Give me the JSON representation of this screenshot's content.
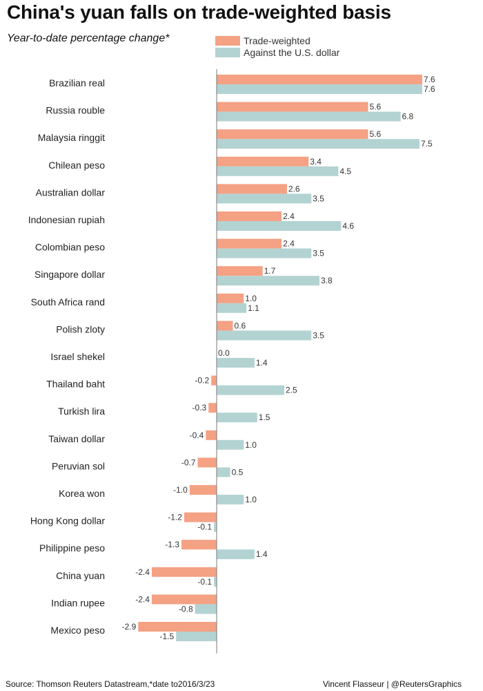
{
  "title": "China's yuan falls on trade-weighted basis",
  "subtitle": "Year-to-date percentage change*",
  "source": "Source: Thomson Reuters Datastream,*date to2016/3/23",
  "credit": "Vincent Flasseur | @ReutersGraphics",
  "colors": {
    "trade_weighted": "#f4a184",
    "usd": "#b3d3d2",
    "axis": "#777777"
  },
  "chart_data": {
    "type": "bar",
    "orientation": "horizontal",
    "title": "China's yuan falls on trade-weighted basis",
    "subtitle": "Year-to-date percentage change*",
    "xlabel": "",
    "ylabel": "",
    "xlim": [
      -4.2,
      8.0
    ],
    "grid": false,
    "legend_position": "top",
    "categories": [
      "Brazilian real",
      "Russia rouble",
      "Malaysia ringgit",
      "Chilean peso",
      "Australian dollar",
      "Indonesian rupiah",
      "Colombian peso",
      "Singapore dollar",
      "South Africa rand",
      "Polish zloty",
      "Israel shekel",
      "Thailand baht",
      "Turkish lira",
      "Taiwan dollar",
      "Peruvian sol",
      "Korea won",
      "Hong Kong dollar",
      "Philippine peso",
      "China yuan",
      "Indian rupee",
      "Mexico peso"
    ],
    "series": [
      {
        "name": "Trade-weighted",
        "color": "#f4a184",
        "values": [
          7.6,
          5.6,
          5.6,
          3.4,
          2.6,
          2.4,
          2.4,
          1.7,
          1.0,
          0.6,
          0.0,
          -0.2,
          -0.3,
          -0.4,
          -0.7,
          -1.0,
          -1.2,
          -1.3,
          -2.4,
          -2.4,
          -2.9
        ],
        "labels": [
          "7.6",
          "5.6",
          "5.6",
          "3.4",
          "2.6",
          "2.4",
          "2.4",
          "1.7",
          "1.0",
          "0.6",
          "0.0",
          "-0.2",
          "-0.3",
          "-0.4",
          "-0.7",
          "-1.0",
          "-1.2",
          "-1.3",
          "-2.4",
          "-2.4",
          "-2.9"
        ]
      },
      {
        "name": "Against the U.S. dollar",
        "color": "#b3d3d2",
        "values": [
          7.6,
          6.8,
          7.5,
          4.5,
          3.5,
          4.6,
          3.5,
          3.8,
          1.1,
          3.5,
          1.4,
          2.5,
          1.5,
          1.0,
          0.5,
          1.0,
          -0.1,
          1.4,
          -0.1,
          -0.8,
          -1.5
        ],
        "labels": [
          "7.6",
          "6.8",
          "7.5",
          "4.5",
          "3.5",
          "4.6",
          "3.5",
          "3.8",
          "1.1",
          "3.5",
          "1.4",
          "2.5",
          "1.5",
          "1.0",
          "0.5",
          "1.0",
          "-0.1",
          "1.4",
          "-0.1",
          "-0.8",
          "-1.5"
        ]
      }
    ]
  }
}
